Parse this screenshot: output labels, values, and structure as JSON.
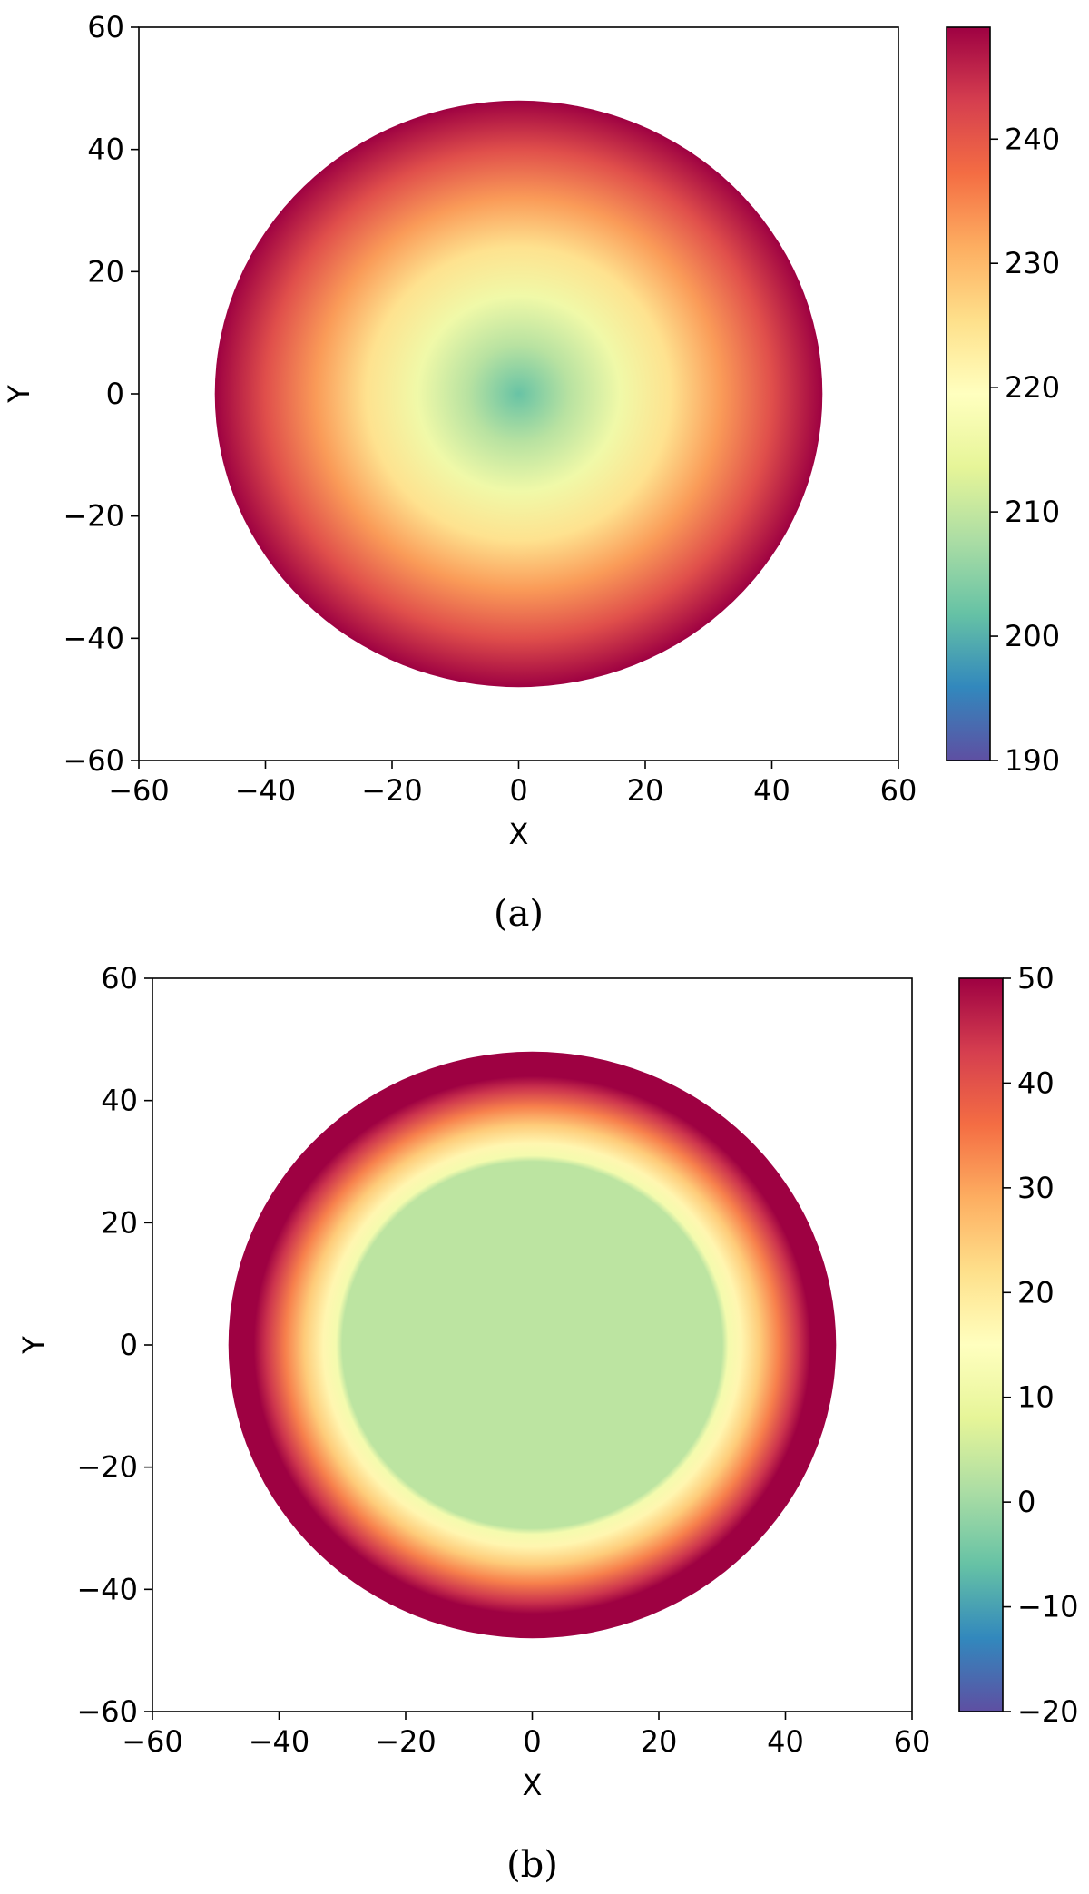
{
  "chart_data": [
    {
      "type": "heatmap",
      "caption": "(a)",
      "xlabel": "X",
      "ylabel": "Y",
      "xlim": [
        -60,
        60
      ],
      "ylim": [
        -60,
        60
      ],
      "xticks": [
        {
          "value": -60,
          "label": "−60"
        },
        {
          "value": -40,
          "label": "−40"
        },
        {
          "value": -20,
          "label": "−20"
        },
        {
          "value": 0,
          "label": "0"
        },
        {
          "value": 20,
          "label": "20"
        },
        {
          "value": 40,
          "label": "40"
        },
        {
          "value": 60,
          "label": "60"
        }
      ],
      "yticks": [
        {
          "value": -60,
          "label": "−60"
        },
        {
          "value": -40,
          "label": "−40"
        },
        {
          "value": -20,
          "label": "−20"
        },
        {
          "value": 0,
          "label": "0"
        },
        {
          "value": 20,
          "label": "20"
        },
        {
          "value": 40,
          "label": "40"
        },
        {
          "value": 60,
          "label": "60"
        }
      ],
      "grid": false,
      "colormap": "Spectral_r",
      "disk_radius": 48,
      "radial_profile": [
        {
          "r": 0,
          "value": 202
        },
        {
          "r": 8,
          "value": 209
        },
        {
          "r": 16,
          "value": 216
        },
        {
          "r": 24,
          "value": 225
        },
        {
          "r": 32,
          "value": 233
        },
        {
          "r": 40,
          "value": 241
        },
        {
          "r": 48,
          "value": 249
        }
      ],
      "colorbar": {
        "vmin": 190,
        "vmax": 249,
        "ticks": [
          {
            "value": 190,
            "label": "190"
          },
          {
            "value": 200,
            "label": "200"
          },
          {
            "value": 210,
            "label": "210"
          },
          {
            "value": 220,
            "label": "220"
          },
          {
            "value": 230,
            "label": "230"
          },
          {
            "value": 240,
            "label": "240"
          }
        ]
      }
    },
    {
      "type": "heatmap",
      "caption": "(b)",
      "xlabel": "X",
      "ylabel": "Y",
      "xlim": [
        -60,
        60
      ],
      "ylim": [
        -60,
        60
      ],
      "xticks": [
        {
          "value": -60,
          "label": "−60"
        },
        {
          "value": -40,
          "label": "−40"
        },
        {
          "value": -20,
          "label": "−20"
        },
        {
          "value": 0,
          "label": "0"
        },
        {
          "value": 20,
          "label": "20"
        },
        {
          "value": 40,
          "label": "40"
        },
        {
          "value": 60,
          "label": "60"
        }
      ],
      "yticks": [
        {
          "value": -60,
          "label": "−60"
        },
        {
          "value": -40,
          "label": "−40"
        },
        {
          "value": -20,
          "label": "−20"
        },
        {
          "value": 0,
          "label": "0"
        },
        {
          "value": 20,
          "label": "20"
        },
        {
          "value": 40,
          "label": "40"
        },
        {
          "value": 60,
          "label": "60"
        }
      ],
      "grid": false,
      "colormap": "Spectral_r",
      "disk_radius": 48,
      "radial_profile": [
        {
          "r": 0,
          "value": 3
        },
        {
          "r": 30,
          "value": 3
        },
        {
          "r": 31,
          "value": 12
        },
        {
          "r": 33,
          "value": 17
        },
        {
          "r": 36,
          "value": 25
        },
        {
          "r": 39,
          "value": 34
        },
        {
          "r": 42,
          "value": 44
        },
        {
          "r": 44,
          "value": 50
        },
        {
          "r": 48,
          "value": 50
        }
      ],
      "colorbar": {
        "vmin": -20,
        "vmax": 50,
        "ticks": [
          {
            "value": -20,
            "label": "−20"
          },
          {
            "value": -10,
            "label": "−10"
          },
          {
            "value": 0,
            "label": "0"
          },
          {
            "value": 10,
            "label": "10"
          },
          {
            "value": 20,
            "label": "20"
          },
          {
            "value": 30,
            "label": "30"
          },
          {
            "value": 40,
            "label": "40"
          },
          {
            "value": 50,
            "label": "50"
          }
        ]
      }
    }
  ]
}
